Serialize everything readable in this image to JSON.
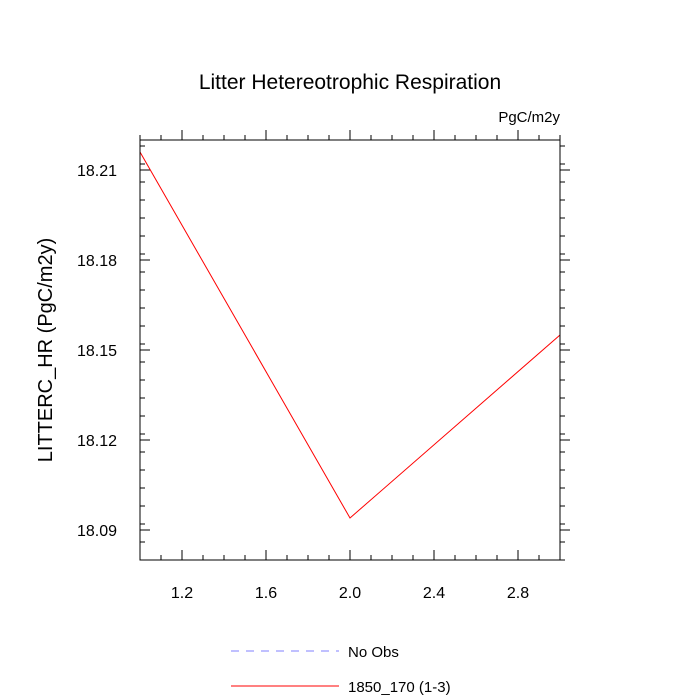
{
  "chart_data": {
    "type": "line",
    "title": "Litter Hetereotrophic Respiration",
    "units_label": "PgC/m2y",
    "ylabel": "LITTERC_HR  (PgC/m2y)",
    "xlabel": "",
    "xlim": [
      1.0,
      3.0
    ],
    "ylim": [
      18.08,
      18.22
    ],
    "x_ticks": [
      1.2,
      1.6,
      2.0,
      2.4,
      2.8
    ],
    "x_tick_labels": [
      "1.2",
      "1.6",
      "2.0",
      "2.4",
      "2.8"
    ],
    "y_ticks": [
      18.09,
      18.12,
      18.15,
      18.18,
      18.21
    ],
    "y_tick_labels": [
      "18.09",
      "18.12",
      "18.15",
      "18.18",
      "18.21"
    ],
    "x_minor_step": 0.1,
    "y_minor_step": 0.006,
    "grid": false,
    "legend_position": "bottom",
    "series": [
      {
        "name": "No Obs",
        "color": "#8080ff",
        "dashed": true,
        "x": [],
        "y": []
      },
      {
        "name": "1850_170 (1-3)",
        "color": "#ff0000",
        "dashed": false,
        "x": [
          1.0,
          2.0,
          3.0
        ],
        "y": [
          18.216,
          18.094,
          18.155
        ]
      }
    ]
  }
}
